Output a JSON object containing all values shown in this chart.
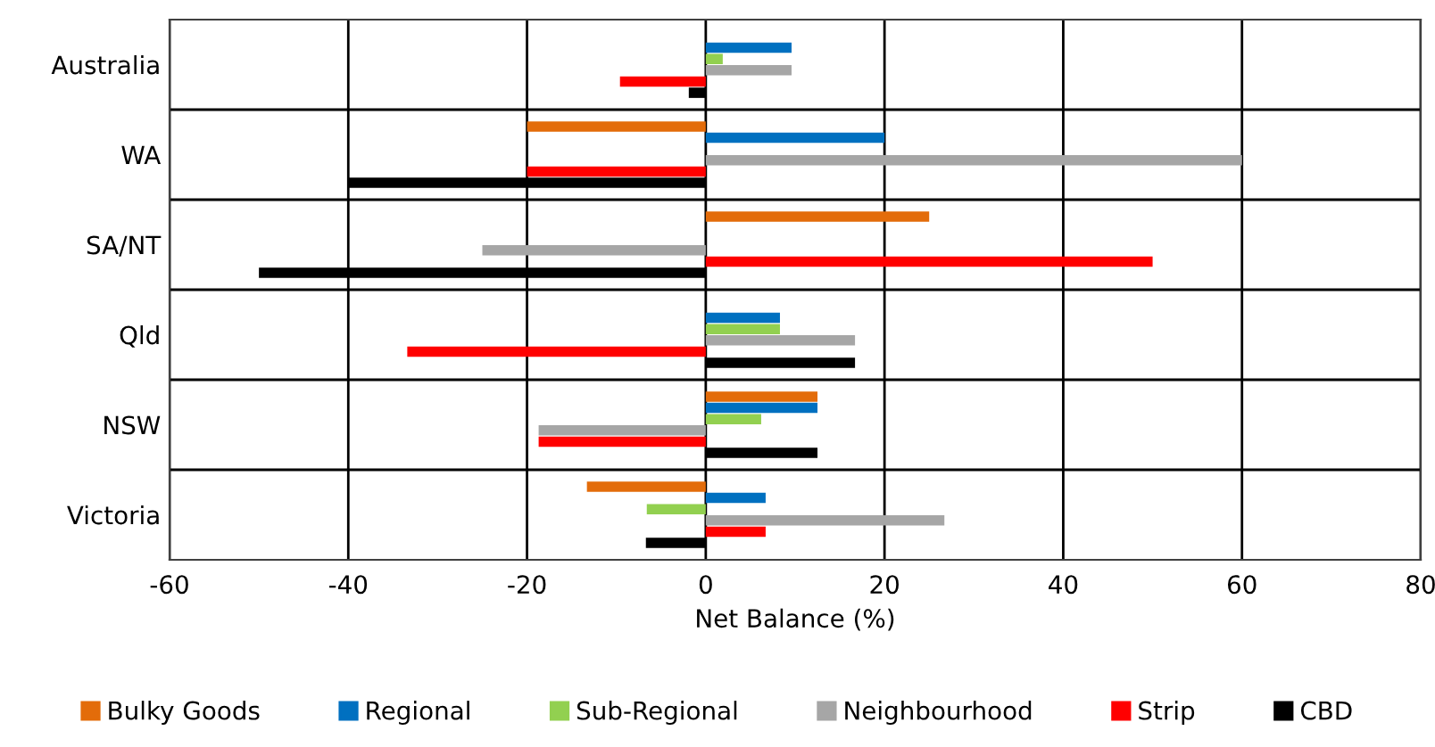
{
  "chart_data": {
    "type": "bar",
    "orientation": "horizontal",
    "xlabel": "Net Balance (%)",
    "categories": [
      "Australia",
      "WA",
      "SA/NT",
      "Qld",
      "NSW",
      "Victoria"
    ],
    "series": [
      {
        "name": "Bulky Goods",
        "color": "#e36c0a",
        "values": [
          null,
          -20,
          25,
          null,
          12.5,
          -13.3
        ]
      },
      {
        "name": "Regional",
        "color": "#0070c0",
        "values": [
          9.6,
          20,
          null,
          8.3,
          12.5,
          6.7
        ]
      },
      {
        "name": "Sub-Regional",
        "color": "#92d050",
        "values": [
          1.9,
          null,
          null,
          8.3,
          6.2,
          -6.6
        ]
      },
      {
        "name": "Neighbourhood",
        "color": "#a6a6a6",
        "values": [
          9.6,
          60,
          -25,
          16.7,
          -18.7,
          26.7
        ]
      },
      {
        "name": "Strip",
        "color": "#ff0000",
        "values": [
          -9.6,
          -20,
          50,
          -33.4,
          -18.7,
          6.7
        ]
      },
      {
        "name": "CBD",
        "color": "#000000",
        "values": [
          -1.9,
          -40,
          -50,
          16.7,
          12.5,
          -6.7
        ]
      }
    ],
    "xlim": [
      -60,
      80
    ],
    "xticks": [
      -60,
      -40,
      -20,
      0,
      20,
      40,
      60,
      80
    ],
    "grid": true,
    "legend": "bottom"
  }
}
